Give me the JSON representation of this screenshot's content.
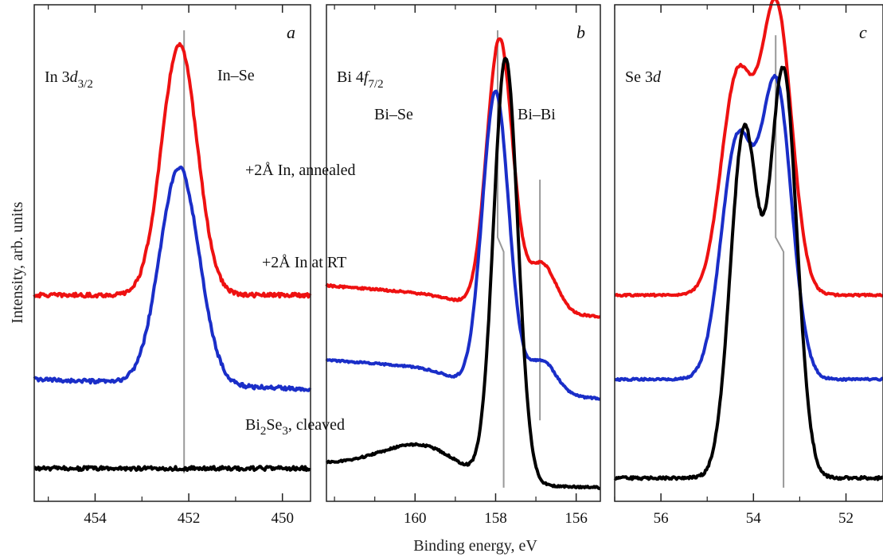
{
  "figure": {
    "ylabel": "Intensity, arb. units",
    "xlabel": "Binding energy, eV"
  },
  "colors": {
    "annealed": "#ee1111",
    "rt": "#1a2ec8",
    "cleaved": "#000000",
    "marker_line": "#999999",
    "frame": "#222222"
  },
  "chart_data": [
    {
      "type": "line",
      "panel_letter": "a",
      "xlim": [
        455.3,
        449.4
      ],
      "x_reversed": true,
      "xticks": [
        454,
        452,
        450
      ],
      "xtick_labels": [
        "454",
        "452",
        "450"
      ],
      "annotations": {
        "core_level_main": "In 3",
        "core_level_italic": "d",
        "core_level_sub": "3/2",
        "bond_label": "In–Se"
      },
      "marker_lines": [
        {
          "x": 452.1,
          "y_from": 0.05,
          "y_to": 0.97
        }
      ],
      "series": [
        {
          "name": "+2Å In, annealed",
          "color_key": "annealed",
          "baseline": 0.42,
          "noise": 0.004,
          "slope": 0.0,
          "peaks": [
            {
              "center": 452.2,
              "height": 0.52,
              "width": 0.38
            }
          ]
        },
        {
          "name": "+2Å In at RT",
          "color_key": "rt",
          "baseline": 0.245,
          "noise": 0.004,
          "slope": -0.002,
          "peaks": [
            {
              "center": 452.2,
              "height": 0.45,
              "width": 0.42
            }
          ]
        },
        {
          "name": "Bi₂Se₃, cleaved",
          "color_key": "cleaved",
          "baseline": 0.06,
          "noise": 0.004,
          "slope": 0.0,
          "peaks": []
        }
      ],
      "curve_labels": [
        "+2Å In, annealed",
        "+2Å In at RT"
      ]
    },
    {
      "type": "line",
      "panel_letter": "b",
      "xlim": [
        162.2,
        155.4
      ],
      "x_reversed": true,
      "xticks": [
        160,
        158,
        156
      ],
      "xtick_labels": [
        "160",
        "158",
        "156"
      ],
      "annotations": {
        "core_level_main": "Bi 4",
        "core_level_italic": "f",
        "core_level_sub": "7/2",
        "bond_label_1": "Bi–Se",
        "bond_label_2": "Bi–Bi"
      },
      "marker_lines": [
        {
          "x": 157.95,
          "y_from": 0.54,
          "y_to": 0.97,
          "shift_to": 157.8,
          "y_end": 0.02
        },
        {
          "x": 156.9,
          "y_from": 0.16,
          "y_to": 0.66
        }
      ],
      "series": [
        {
          "name": "+2Å In, annealed",
          "color_key": "annealed",
          "baseline": 0.42,
          "slope": -0.0045,
          "noise": 0.002,
          "step": {
            "center": 159.0,
            "height": 0.02
          },
          "peaks": [
            {
              "center": 157.9,
              "height": 0.56,
              "width": 0.32
            },
            {
              "center": 156.85,
              "height": 0.1,
              "width": 0.35
            }
          ]
        },
        {
          "name": "+2Å In at RT",
          "color_key": "rt",
          "baseline": 0.245,
          "slope": -0.004,
          "noise": 0.002,
          "step": {
            "center": 159.0,
            "height": 0.04
          },
          "peaks": [
            {
              "center": 158.0,
              "height": 0.62,
              "width": 0.33
            },
            {
              "center": 156.85,
              "height": 0.07,
              "width": 0.35
            }
          ]
        },
        {
          "name": "Bi₂Se₃, cleaved",
          "color_key": "cleaved",
          "baseline": 0.04,
          "slope": -0.002,
          "noise": 0.002,
          "step": {
            "center": 159.2,
            "height": 0.03
          },
          "peaks": [
            {
              "center": 157.75,
              "height": 0.88,
              "width": 0.3
            },
            {
              "center": 159.8,
              "height": 0.05,
              "width": 1.0
            }
          ]
        }
      ]
    },
    {
      "type": "line",
      "panel_letter": "c",
      "xlim": [
        57.0,
        51.2
      ],
      "x_reversed": true,
      "xticks": [
        56,
        54,
        52
      ],
      "xtick_labels": [
        "56",
        "54",
        "52"
      ],
      "annotations": {
        "core_level_main": "Se 3",
        "core_level_italic": "d"
      },
      "marker_lines": [
        {
          "x": 53.52,
          "y_from": 0.54,
          "y_to": 0.96,
          "shift_to": 53.35,
          "y_end": 0.02
        }
      ],
      "series": [
        {
          "name": "+2Å In, annealed",
          "color_key": "annealed",
          "baseline": 0.42,
          "slope": 0.0,
          "noise": 0.002,
          "peaks": [
            {
              "center": 54.35,
              "height": 0.45,
              "width": 0.35
            },
            {
              "center": 53.5,
              "height": 0.59,
              "width": 0.33
            }
          ]
        },
        {
          "name": "+2Å In at RT",
          "color_key": "rt",
          "baseline": 0.245,
          "slope": 0.0,
          "noise": 0.002,
          "peaks": [
            {
              "center": 54.35,
              "height": 0.49,
              "width": 0.35
            },
            {
              "center": 53.5,
              "height": 0.6,
              "width": 0.33
            }
          ]
        },
        {
          "name": "Bi₂Se₃, cleaved",
          "color_key": "cleaved",
          "baseline": 0.04,
          "slope": 0.0,
          "noise": 0.003,
          "peaks": [
            {
              "center": 54.2,
              "height": 0.72,
              "width": 0.3
            },
            {
              "center": 53.35,
              "height": 0.84,
              "width": 0.29
            }
          ]
        }
      ],
      "curve_labels": [
        "Bi₂Se₃, cleaved"
      ]
    }
  ]
}
